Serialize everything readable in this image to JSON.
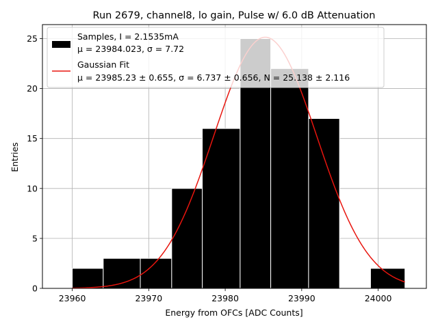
{
  "chart_data": {
    "type": "histogram",
    "title": "Run 2679, channel8, lo gain, Pulse w/ 6.0 dB Attenuation",
    "xlabel": "Energy from OFCs [ADC Counts]",
    "ylabel": "Entries",
    "xlim": [
      23956.1,
      24006.3
    ],
    "ylim": [
      0,
      26.4
    ],
    "grid": true,
    "legend_position": "upper-left",
    "x_ticks": [
      23960,
      23970,
      23980,
      23990,
      24000
    ],
    "x_tick_labels": [
      "23960",
      "23970",
      "23980",
      "23990",
      "24000"
    ],
    "y_ticks": [
      0,
      5,
      10,
      15,
      20,
      25
    ],
    "y_tick_labels": [
      "0",
      "5",
      "10",
      "15",
      "20",
      "25"
    ],
    "bins": [
      {
        "left": 23960.0,
        "right": 23964.05,
        "count": 2
      },
      {
        "left": 23964.05,
        "right": 23968.9,
        "count": 3
      },
      {
        "left": 23968.9,
        "right": 23973.0,
        "count": 3
      },
      {
        "left": 23973.0,
        "right": 23977.0,
        "count": 10
      },
      {
        "left": 23977.0,
        "right": 23981.95,
        "count": 16
      },
      {
        "left": 23981.95,
        "right": 23985.95,
        "count": 25
      },
      {
        "left": 23985.95,
        "right": 23990.9,
        "count": 22
      },
      {
        "left": 23990.9,
        "right": 23994.95,
        "count": 17
      },
      {
        "left": 23999.0,
        "right": 24003.5,
        "count": 2
      }
    ],
    "bar_color": "#000000",
    "bar_edge_color": "#ffffff",
    "fit": {
      "type": "gaussian",
      "mu": 23985.23,
      "sigma": 6.737,
      "N": 25.138,
      "x_range": [
        23960,
        24003.5
      ],
      "color": "#e8150e"
    },
    "legend": [
      {
        "kind": "patch",
        "color": "#000000",
        "line1": "Samples, I = 2.1535mA",
        "line2": "μ = 23984.023, σ = 7.72"
      },
      {
        "kind": "line",
        "color": "#e8150e",
        "line1": "Gaussian Fit",
        "line2": "μ = 23985.23 ± 0.655, σ = 6.737 ± 0.656, N = 25.138 ± 2.116"
      }
    ]
  }
}
